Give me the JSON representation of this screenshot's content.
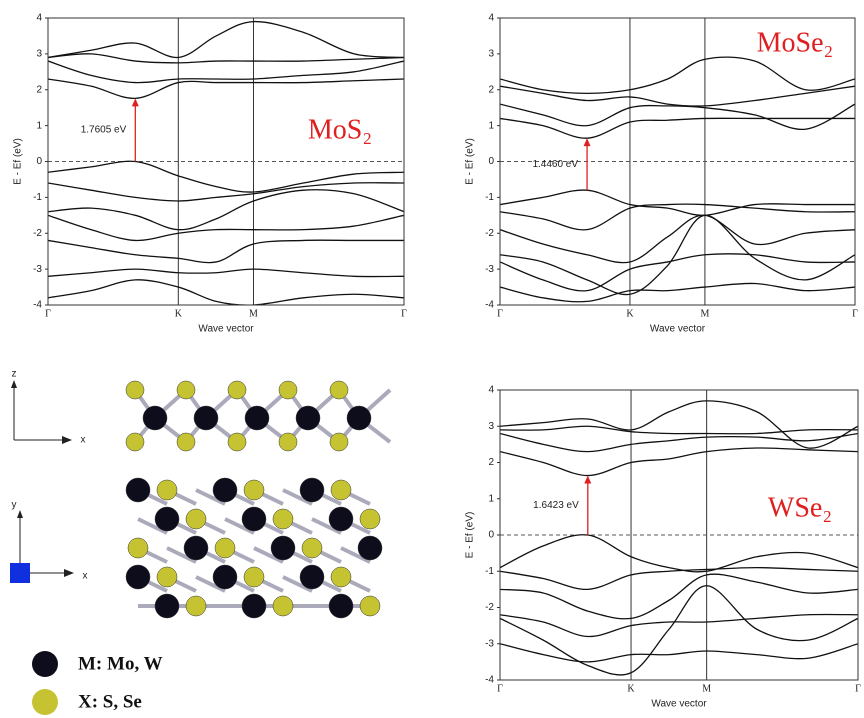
{
  "chart_data": [
    {
      "type": "line",
      "title": "MoS₂",
      "ylabel": "E - Ef (eV)",
      "xlabel": "Wave vector",
      "xlim": [
        0,
        2.732
      ],
      "xticks": [
        {
          "value": 0,
          "label": "Γ"
        },
        {
          "value": 1,
          "label": "K"
        },
        {
          "value": 1.577,
          "label": "M"
        },
        {
          "value": 2.732,
          "label": "Γ"
        }
      ],
      "ylim": [
        -4,
        4
      ],
      "yticks": [
        -4,
        -3,
        -2,
        -1,
        0,
        1,
        2,
        3,
        4
      ],
      "zero_line": true,
      "gap": {
        "label": "1.7605 eV",
        "x": 0.67,
        "from": 0,
        "to": 1.76,
        "color": "#e02020"
      },
      "x": [
        0,
        0.33,
        0.67,
        1,
        1.29,
        1.577,
        1.96,
        2.35,
        2.732
      ],
      "series": [
        {
          "color": "#111",
          "values": [
            -0.3,
            -0.15,
            0,
            -0.4,
            -0.7,
            -0.85,
            -0.6,
            -0.35,
            -0.3
          ]
        },
        {
          "color": "#111",
          "values": [
            -0.6,
            -0.8,
            -1.0,
            -1.1,
            -1.0,
            -0.9,
            -0.7,
            -0.6,
            -0.6
          ]
        },
        {
          "color": "#111",
          "values": [
            -1.4,
            -1.3,
            -1.5,
            -1.9,
            -1.6,
            -1.1,
            -0.8,
            -0.9,
            -1.4
          ]
        },
        {
          "color": "#111",
          "values": [
            -1.5,
            -1.9,
            -2.2,
            -2.0,
            -1.9,
            -1.9,
            -1.9,
            -1.8,
            -1.5
          ]
        },
        {
          "color": "#111",
          "values": [
            -2.2,
            -2.4,
            -2.6,
            -2.7,
            -2.8,
            -2.3,
            -2.2,
            -2.2,
            -2.2
          ]
        },
        {
          "color": "#111",
          "values": [
            -3.2,
            -3.1,
            -3.0,
            -3.1,
            -3.1,
            -3.0,
            -3.1,
            -3.2,
            -3.2
          ]
        },
        {
          "color": "#111",
          "values": [
            -3.8,
            -3.6,
            -3.3,
            -3.5,
            -3.9,
            -4.0,
            -3.8,
            -3.7,
            -3.8
          ]
        },
        {
          "color": "#111",
          "values": [
            2.3,
            2.1,
            1.76,
            2.2,
            2.2,
            2.2,
            2.2,
            2.25,
            2.3
          ]
        },
        {
          "color": "#111",
          "values": [
            2.8,
            2.4,
            2.2,
            2.3,
            2.3,
            2.3,
            2.4,
            2.5,
            2.8
          ]
        },
        {
          "color": "#111",
          "values": [
            2.9,
            3.0,
            2.8,
            2.75,
            2.8,
            2.8,
            2.8,
            2.85,
            2.9
          ]
        },
        {
          "color": "#111",
          "values": [
            2.9,
            3.1,
            3.3,
            2.9,
            3.5,
            3.9,
            3.6,
            3.0,
            2.9
          ]
        }
      ]
    },
    {
      "type": "line",
      "title": "MoSe₂",
      "ylabel": "E - Ef (eV)",
      "xlabel": "Wave vector",
      "xlim": [
        0,
        2.732
      ],
      "xticks": [
        {
          "value": 0,
          "label": "Γ"
        },
        {
          "value": 1,
          "label": "K"
        },
        {
          "value": 1.577,
          "label": "M"
        },
        {
          "value": 2.732,
          "label": "Γ"
        }
      ],
      "ylim": [
        -4,
        4
      ],
      "yticks": [
        -4,
        -3,
        -2,
        -1,
        0,
        1,
        2,
        3,
        4
      ],
      "zero_line": true,
      "gap": {
        "label": "1.4460 eV",
        "x": 0.67,
        "from": -0.8,
        "to": 0.65,
        "color": "#e02020"
      },
      "x": [
        0,
        0.33,
        0.67,
        1,
        1.29,
        1.577,
        1.96,
        2.35,
        2.732
      ],
      "series": [
        {
          "color": "#111",
          "values": [
            -1.2,
            -1.0,
            -0.8,
            -1.2,
            -1.3,
            -1.5,
            -1.2,
            -1.2,
            -1.2
          ]
        },
        {
          "color": "#111",
          "values": [
            -1.4,
            -1.6,
            -1.9,
            -1.3,
            -1.2,
            -1.2,
            -1.3,
            -1.4,
            -1.4
          ]
        },
        {
          "color": "#111",
          "values": [
            -1.9,
            -2.3,
            -2.6,
            -2.8,
            -2.1,
            -1.5,
            -2.3,
            -2.0,
            -1.9
          ]
        },
        {
          "color": "#111",
          "values": [
            -2.6,
            -2.8,
            -3.3,
            -3.7,
            -2.9,
            -1.5,
            -2.7,
            -3.3,
            -2.6
          ]
        },
        {
          "color": "#111",
          "values": [
            -2.8,
            -3.3,
            -3.6,
            -3.0,
            -2.8,
            -2.6,
            -2.6,
            -2.8,
            -2.8
          ]
        },
        {
          "color": "#111",
          "values": [
            -3.5,
            -3.8,
            -3.9,
            -3.6,
            -3.6,
            -3.5,
            -3.4,
            -3.6,
            -3.5
          ]
        },
        {
          "color": "#111",
          "values": [
            1.2,
            1.0,
            0.65,
            1.1,
            1.15,
            1.2,
            1.2,
            1.2,
            1.2
          ]
        },
        {
          "color": "#111",
          "values": [
            1.6,
            1.3,
            1.0,
            1.5,
            1.55,
            1.5,
            1.3,
            0.9,
            1.6
          ]
        },
        {
          "color": "#111",
          "values": [
            2.1,
            1.9,
            1.7,
            1.8,
            1.6,
            1.55,
            1.7,
            1.9,
            2.1
          ]
        },
        {
          "color": "#111",
          "values": [
            2.3,
            2.0,
            1.9,
            2.0,
            2.3,
            2.85,
            2.8,
            2.0,
            2.3
          ]
        }
      ]
    },
    {
      "type": "line",
      "title": "WSe₂",
      "ylabel": "E - Ef (eV)",
      "xlabel": "Wave vector",
      "xlim": [
        0,
        2.732
      ],
      "xticks": [
        {
          "value": 0,
          "label": "Γ"
        },
        {
          "value": 1,
          "label": "K"
        },
        {
          "value": 1.577,
          "label": "M"
        },
        {
          "value": 2.732,
          "label": "Γ"
        }
      ],
      "ylim": [
        -4,
        4
      ],
      "yticks": [
        -4,
        -3,
        -2,
        -1,
        0,
        1,
        2,
        3,
        4
      ],
      "zero_line": true,
      "gap": {
        "label": "1.6423 eV",
        "x": 0.67,
        "from": 0,
        "to": 1.64,
        "color": "#e02020"
      },
      "x": [
        0,
        0.33,
        0.67,
        1,
        1.29,
        1.577,
        1.96,
        2.35,
        2.732
      ],
      "series": [
        {
          "color": "#111",
          "values": [
            -0.9,
            -0.3,
            0,
            -0.6,
            -0.9,
            -1.0,
            -0.6,
            -0.5,
            -0.9
          ]
        },
        {
          "color": "#111",
          "values": [
            -1.0,
            -1.2,
            -1.5,
            -1.1,
            -1.0,
            -0.95,
            -0.9,
            -0.95,
            -1.0
          ]
        },
        {
          "color": "#111",
          "values": [
            -1.5,
            -1.6,
            -2.1,
            -2.3,
            -1.8,
            -1.1,
            -1.3,
            -1.6,
            -1.5
          ]
        },
        {
          "color": "#111",
          "values": [
            -2.2,
            -2.4,
            -2.8,
            -2.5,
            -2.4,
            -2.4,
            -2.3,
            -2.2,
            -2.2
          ]
        },
        {
          "color": "#111",
          "values": [
            -2.3,
            -2.9,
            -3.6,
            -3.8,
            -2.6,
            -1.4,
            -2.6,
            -2.9,
            -2.3
          ]
        },
        {
          "color": "#111",
          "values": [
            -3.0,
            -3.3,
            -3.5,
            -3.3,
            -3.3,
            -3.2,
            -3.3,
            -3.4,
            -3.0
          ]
        },
        {
          "color": "#111",
          "values": [
            2.3,
            2.0,
            1.64,
            2.0,
            2.1,
            2.3,
            2.4,
            2.35,
            2.3
          ]
        },
        {
          "color": "#111",
          "values": [
            2.8,
            2.5,
            2.3,
            2.5,
            2.6,
            2.7,
            2.7,
            2.6,
            2.8
          ]
        },
        {
          "color": "#111",
          "values": [
            2.9,
            2.9,
            3.0,
            2.85,
            2.8,
            2.8,
            2.8,
            2.9,
            2.9
          ]
        },
        {
          "color": "#111",
          "values": [
            3.0,
            3.1,
            3.2,
            2.9,
            3.4,
            3.7,
            3.4,
            2.4,
            3.0
          ]
        }
      ]
    }
  ],
  "structure": {
    "side_axes": [
      "z",
      "x"
    ],
    "top_axes": [
      "y",
      "x"
    ],
    "legend": [
      {
        "label": "M: Mo, W",
        "color": "#0d0d1c"
      },
      {
        "label": "X: S, Se",
        "color": "#c6c332"
      }
    ]
  }
}
